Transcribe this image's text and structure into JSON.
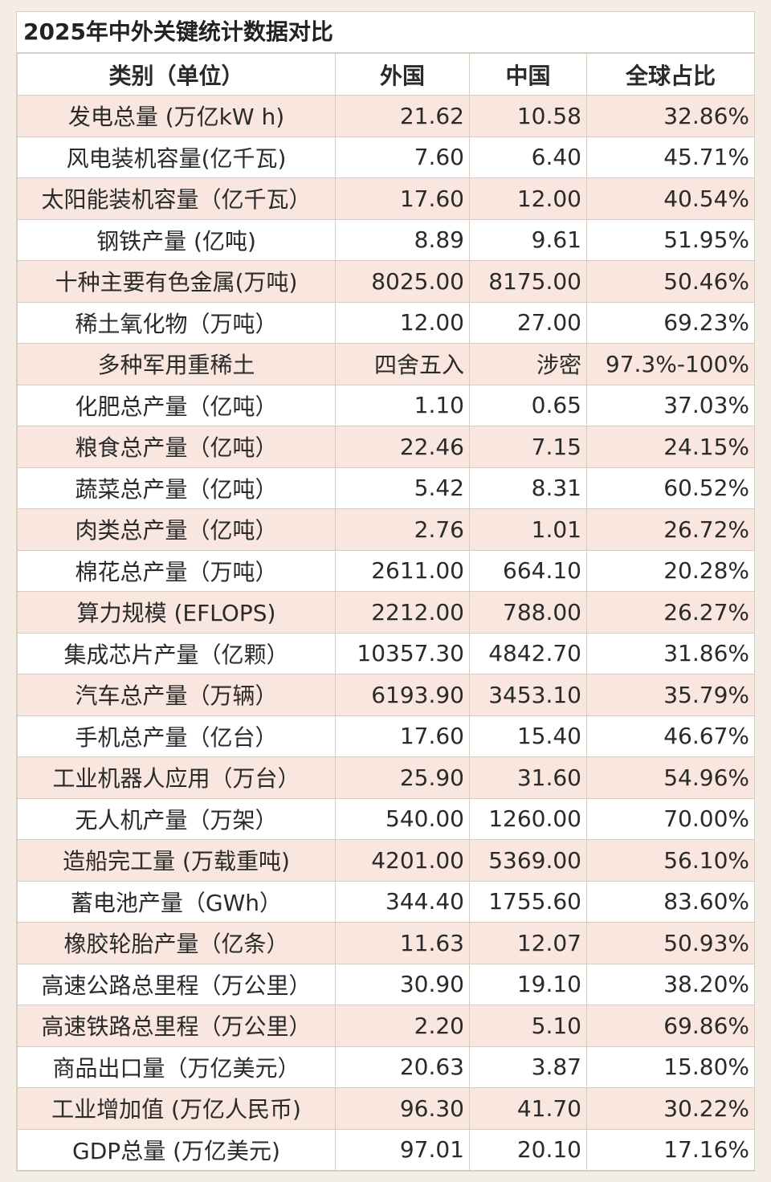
{
  "title": "2025年中外关键统计数据对比",
  "table": {
    "headers": [
      "类别（单位）",
      "外国",
      "中国",
      "全球占比"
    ],
    "rows": [
      [
        "发电总量 (万亿kW h)",
        "21.62",
        "10.58",
        "32.86%"
      ],
      [
        "风电装机容量(亿千瓦)",
        "7.60",
        "6.40",
        "45.71%"
      ],
      [
        "太阳能装机容量（亿千瓦）",
        "17.60",
        "12.00",
        "40.54%"
      ],
      [
        "钢铁产量 (亿吨)",
        "8.89",
        "9.61",
        "51.95%"
      ],
      [
        "十种主要有色金属(万吨)",
        "8025.00",
        "8175.00",
        "50.46%"
      ],
      [
        "稀土氧化物（万吨）",
        "12.00",
        "27.00",
        "69.23%"
      ],
      [
        "多种军用重稀土",
        "四舍五入",
        "涉密",
        "97.3%-100%"
      ],
      [
        "化肥总产量（亿吨）",
        "1.10",
        "0.65",
        "37.03%"
      ],
      [
        "粮食总产量（亿吨）",
        "22.46",
        "7.15",
        "24.15%"
      ],
      [
        "蔬菜总产量（亿吨）",
        "5.42",
        "8.31",
        "60.52%"
      ],
      [
        "肉类总产量（亿吨）",
        "2.76",
        "1.01",
        "26.72%"
      ],
      [
        "棉花总产量（万吨）",
        "2611.00",
        "664.10",
        "20.28%"
      ],
      [
        "算力规模 (EFLOPS)",
        "2212.00",
        "788.00",
        "26.27%"
      ],
      [
        "集成芯片产量（亿颗）",
        "10357.30",
        "4842.70",
        "31.86%"
      ],
      [
        "汽车总产量（万辆）",
        "6193.90",
        "3453.10",
        "35.79%"
      ],
      [
        "手机总产量（亿台）",
        "17.60",
        "15.40",
        "46.67%"
      ],
      [
        "工业机器人应用（万台）",
        "25.90",
        "31.60",
        "54.96%"
      ],
      [
        "无人机产量（万架）",
        "540.00",
        "1260.00",
        "70.00%"
      ],
      [
        "造船完工量 (万载重吨)",
        "4201.00",
        "5369.00",
        "56.10%"
      ],
      [
        "蓄电池产量（GWh）",
        "344.40",
        "1755.60",
        "83.60%"
      ],
      [
        "橡胶轮胎产量（亿条）",
        "11.63",
        "12.07",
        "50.93%"
      ],
      [
        "高速公路总里程（万公里）",
        "30.90",
        "19.10",
        "38.20%"
      ],
      [
        "高速铁路总里程（万公里）",
        "2.20",
        "5.10",
        "69.86%"
      ],
      [
        "商品出口量（万亿美元）",
        "20.63",
        "3.87",
        "15.80%"
      ],
      [
        "工业增加值 (万亿人民币)",
        "96.30",
        "41.70",
        "30.22%"
      ],
      [
        "GDP总量 (万亿美元)",
        "97.01",
        "20.10",
        "17.16%"
      ]
    ]
  }
}
